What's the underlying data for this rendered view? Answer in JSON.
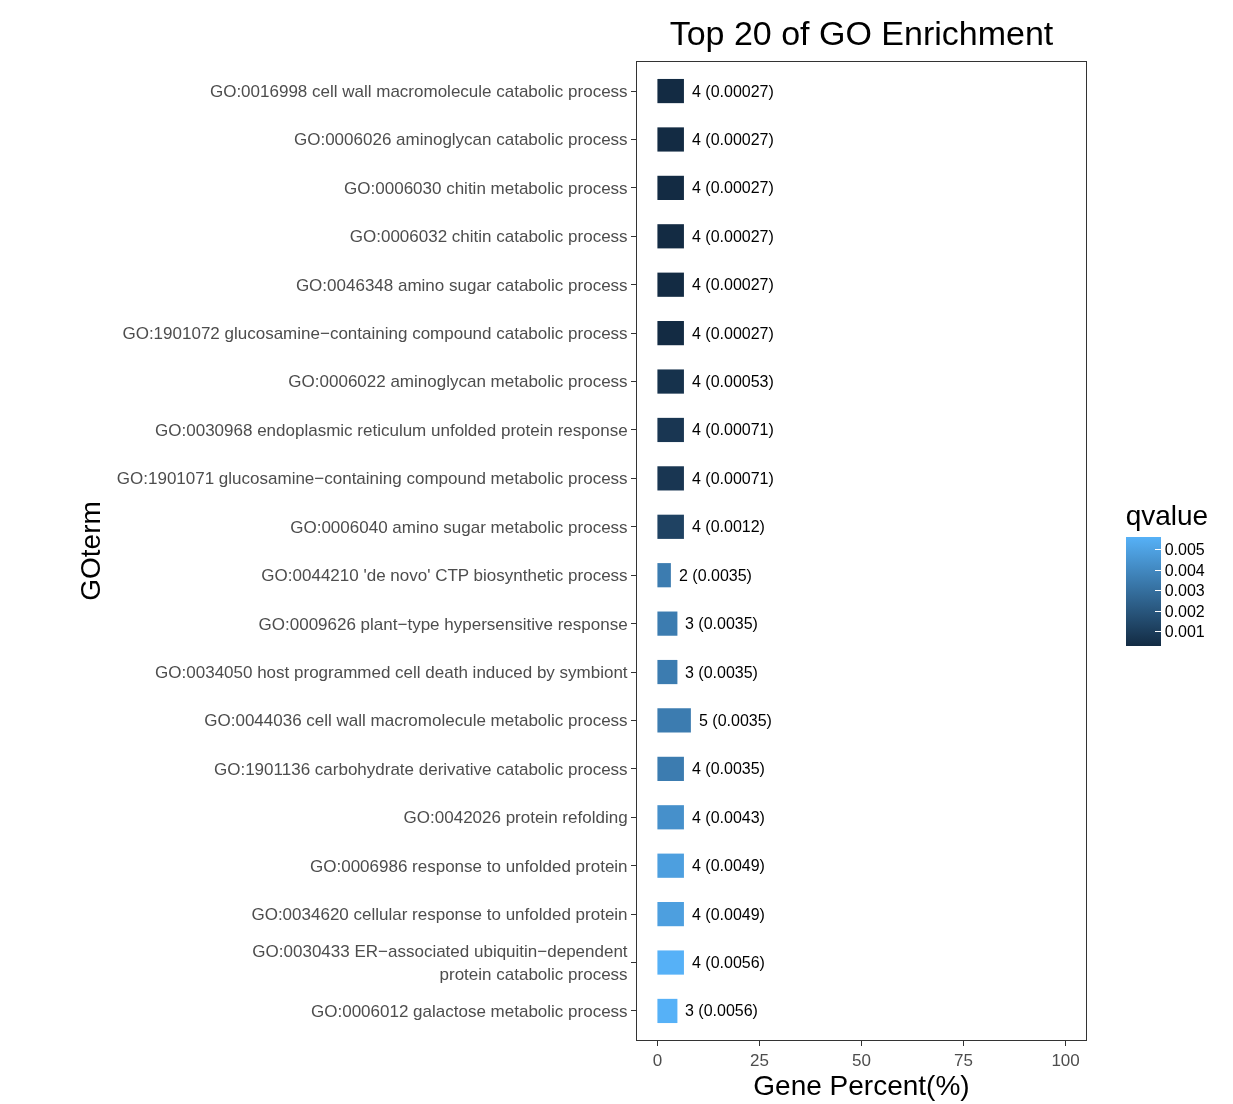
{
  "chart_data": {
    "type": "bar",
    "orientation": "horizontal",
    "title": "Top 20 of GO Enrichment",
    "xlabel": "Gene Percent(%)",
    "ylabel": "GOterm",
    "clabel": "qvalue",
    "categories": [
      "GO:0016998 cell wall macromolecule catabolic process",
      "GO:0006026 aminoglycan catabolic process",
      "GO:0006030 chitin metabolic process",
      "GO:0006032 chitin catabolic process",
      "GO:0046348 amino sugar catabolic process",
      "GO:1901072 glucosamine−containing compound catabolic process",
      "GO:0006022 aminoglycan metabolic process",
      "GO:0030968 endoplasmic reticulum unfolded protein response",
      "GO:1901071 glucosamine−containing compound metabolic process",
      "GO:0006040 amino sugar metabolic process",
      "GO:0044210 'de novo' CTP biosynthetic process",
      "GO:0009626 plant−type hypersensitive response",
      "GO:0034050 host programmed cell death induced by symbiont",
      "GO:0044036 cell wall macromolecule metabolic process",
      "GO:1901136 carbohydrate derivative catabolic process",
      "GO:0042026 protein refolding",
      "GO:0006986 response to unfolded protein",
      "GO:0034620 cellular response to unfolded protein",
      "GO:0030433 ER−associated ubiquitin−dependent\nprotein catabolic process",
      "GO:0006012 galactose metabolic process"
    ],
    "values": [
      6.5,
      6.5,
      6.5,
      6.5,
      6.5,
      6.5,
      6.5,
      6.5,
      6.5,
      6.5,
      3.3,
      4.9,
      4.9,
      8.2,
      6.5,
      6.5,
      6.5,
      6.5,
      6.5,
      4.9
    ],
    "cvalues": [
      0.00027,
      0.00027,
      0.00027,
      0.00027,
      0.00027,
      0.00027,
      0.00053,
      0.00071,
      0.00071,
      0.0012,
      0.0035,
      0.0035,
      0.0035,
      0.0035,
      0.0035,
      0.0043,
      0.0049,
      0.0049,
      0.0056,
      0.0056
    ],
    "annotations": [
      {
        "text": "4 (0.00027)",
        "x": 6.5,
        "y": "GO:0016998 cell wall macromolecule catabolic process"
      },
      {
        "text": "4 (0.00027)",
        "x": 6.5,
        "y": "GO:0006026 aminoglycan catabolic process"
      },
      {
        "text": "4 (0.00027)",
        "x": 6.5,
        "y": "GO:0006030 chitin metabolic process"
      },
      {
        "text": "4 (0.00027)",
        "x": 6.5,
        "y": "GO:0006032 chitin catabolic process"
      },
      {
        "text": "4 (0.00027)",
        "x": 6.5,
        "y": "GO:0046348 amino sugar catabolic process"
      },
      {
        "text": "4 (0.00027)",
        "x": 6.5,
        "y": "GO:1901072 glucosamine−containing compound catabolic process"
      },
      {
        "text": "4 (0.00053)",
        "x": 6.5,
        "y": "GO:0006022 aminoglycan metabolic process"
      },
      {
        "text": "4 (0.00071)",
        "x": 6.5,
        "y": "GO:0030968 endoplasmic reticulum unfolded protein response"
      },
      {
        "text": "4 (0.00071)",
        "x": 6.5,
        "y": "GO:1901071 glucosamine−containing compound metabolic process"
      },
      {
        "text": "4 (0.0012)",
        "x": 6.5,
        "y": "GO:0006040 amino sugar metabolic process"
      },
      {
        "text": "2 (0.0035)",
        "x": 3.3,
        "y": "GO:0044210 'de novo' CTP biosynthetic process"
      },
      {
        "text": "3 (0.0035)",
        "x": 4.9,
        "y": "GO:0009626 plant−type hypersensitive response"
      },
      {
        "text": "3 (0.0035)",
        "x": 4.9,
        "y": "GO:0034050 host programmed cell death induced by symbiont"
      },
      {
        "text": "5 (0.0035)",
        "x": 8.2,
        "y": "GO:0044036 cell wall macromolecule metabolic process"
      },
      {
        "text": "4 (0.0035)",
        "x": 6.5,
        "y": "GO:1901136 carbohydrate derivative catabolic process"
      },
      {
        "text": "4 (0.0043)",
        "x": 6.5,
        "y": "GO:0042026 protein refolding"
      },
      {
        "text": "4 (0.0049)",
        "x": 6.5,
        "y": "GO:0006986 response to unfolded protein"
      },
      {
        "text": "4 (0.0049)",
        "x": 6.5,
        "y": "GO:0034620 cellular response to unfolded protein"
      },
      {
        "text": "4 (0.0056)",
        "x": 6.5,
        "y": "GO:0030433 ER−associated ubiquitin−dependent\nprotein catabolic process"
      },
      {
        "text": "3 (0.0056)",
        "x": 4.9,
        "y": "GO:0006012 galactose metabolic process"
      }
    ],
    "clim": [
      0.00027,
      0.0056
    ],
    "cticks": [
      0.001,
      0.002,
      0.003,
      0.004,
      0.005
    ],
    "xlim": [
      -5,
      105
    ],
    "xticks": [
      0,
      25,
      50,
      75,
      100
    ],
    "grid": false
  }
}
